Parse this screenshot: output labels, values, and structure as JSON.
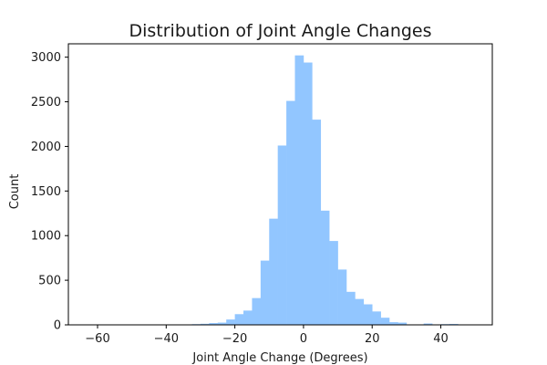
{
  "chart_data": {
    "type": "bar",
    "title": "Distribution of Joint Angle Changes",
    "xlabel": "Joint Angle Change (Degrees)",
    "ylabel": "Count",
    "xlim": [
      -68.5,
      55
    ],
    "ylim": [
      0,
      3150
    ],
    "xticks": [
      -60,
      -40,
      -20,
      0,
      20,
      40
    ],
    "yticks": [
      0,
      500,
      1000,
      1500,
      2000,
      2500,
      3000
    ],
    "grid": false,
    "bar_color": "#92c6ff",
    "bin_edges": [
      -40,
      -37.5,
      -35,
      -32.5,
      -30,
      -27.5,
      -25,
      -22.5,
      -20,
      -17.5,
      -15,
      -12.5,
      -10,
      -7.5,
      -5,
      -2.5,
      0,
      2.5,
      5,
      7.5,
      10,
      12.5,
      15,
      17.5,
      20,
      22.5,
      25,
      27.5,
      30,
      32.5,
      35,
      37.5,
      40,
      42.5,
      45,
      47.5
    ],
    "values": [
      3,
      2,
      5,
      8,
      12,
      20,
      25,
      60,
      120,
      160,
      300,
      720,
      1190,
      2010,
      2510,
      3020,
      2940,
      2300,
      1280,
      940,
      620,
      370,
      290,
      230,
      150,
      80,
      30,
      25,
      5,
      3,
      15,
      5,
      8,
      10,
      3
    ]
  }
}
